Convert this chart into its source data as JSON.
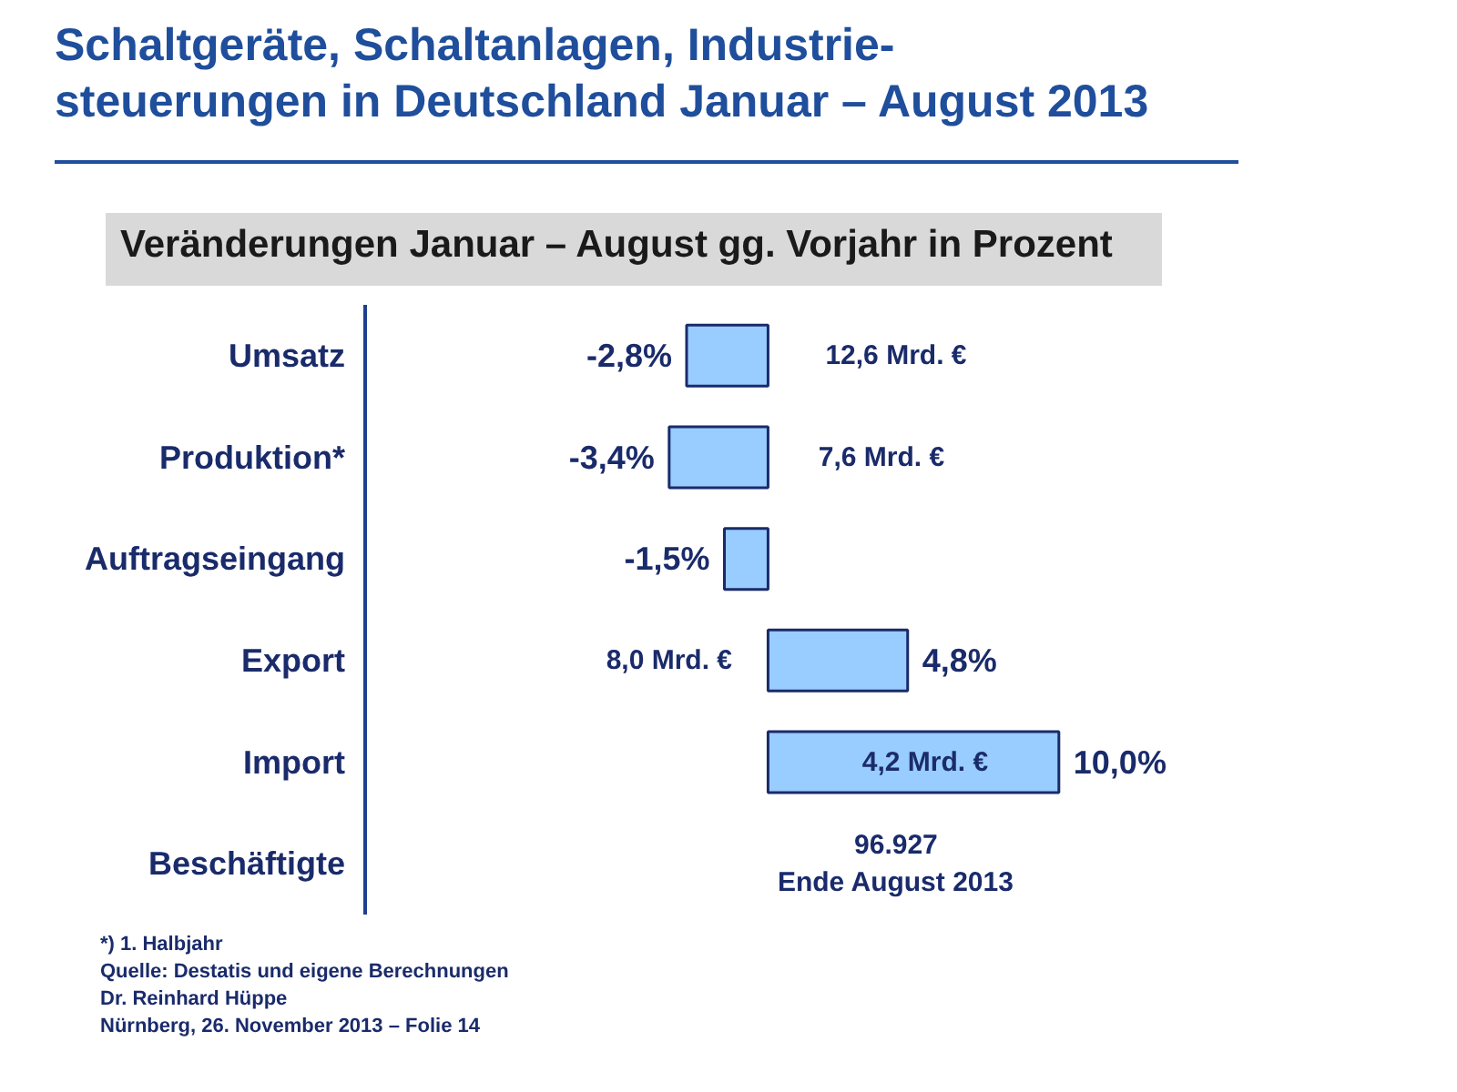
{
  "chart_data": {
    "type": "bar",
    "orientation": "horizontal",
    "title": "Schaltgeräte, Schaltanlagen, Industrie-\nsteuerungen in Deutschland Januar – August 2013",
    "subtitle": "Veränderungen Januar – August gg. Vorjahr in Prozent",
    "categories": [
      "Umsatz",
      "Produktion*",
      "Auftragseingang",
      "Export",
      "Import",
      "Beschäftigte"
    ],
    "values": [
      -2.8,
      -3.4,
      -1.5,
      4.8,
      10.0,
      null
    ],
    "value_labels": [
      "-2,8%",
      "-3,4%",
      "-1,5%",
      "4,8%",
      "10,0%",
      null
    ],
    "color": "#99ccff",
    "annotations": [
      "12,6 Mrd. €",
      "7,6 Mrd. €",
      "8,0 Mrd. €",
      "4,2 Mrd. €",
      "96.927\nEnde August 2013",
      "*) 1. Halbjahr",
      "Quelle: Destatis und eigene Berechnungen",
      "Dr. Reinhard Hüppe",
      "Nürnberg, 26. November 2013 – Folie 14"
    ],
    "grid": false
  }
}
